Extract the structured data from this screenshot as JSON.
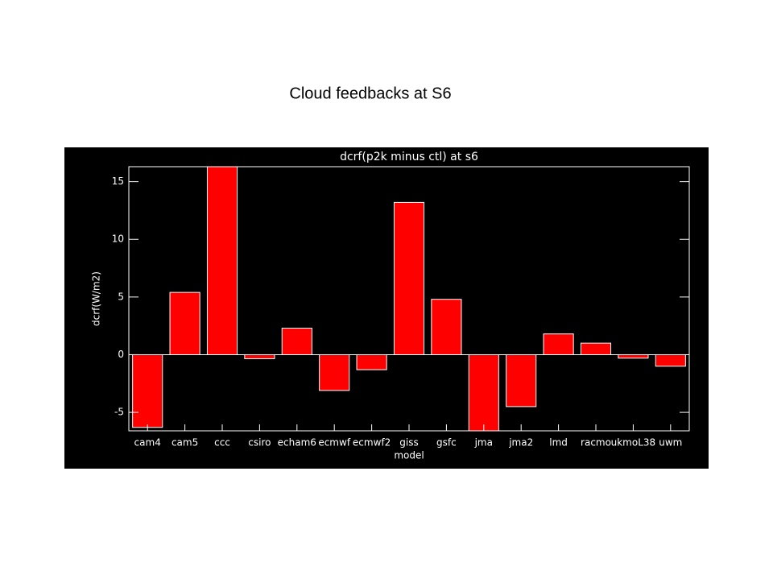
{
  "page_title": "Cloud feedbacks at S6",
  "chart_data": {
    "type": "bar",
    "title": "dcrf(p2k minus ctl) at s6",
    "x_label": "model",
    "y_label": "dcrf(W/m2)",
    "categories": [
      "cam4",
      "cam5",
      "ccc",
      "csiro",
      "echam6",
      "ecmwf",
      "ecmwf2",
      "giss",
      "gsfc",
      "jma",
      "jma2",
      "lmd",
      "racmo",
      "ukmoL38",
      "uwm"
    ],
    "values": [
      -6.3,
      5.4,
      16.3,
      -0.35,
      2.3,
      -3.1,
      -1.3,
      13.2,
      4.8,
      -6.6,
      -4.5,
      1.8,
      1.0,
      -0.3,
      -1.0
    ],
    "color": "#ff0000",
    "ylim": [
      -6.6,
      16.3
    ],
    "yticks": [
      -5,
      0,
      5,
      10,
      15
    ]
  }
}
